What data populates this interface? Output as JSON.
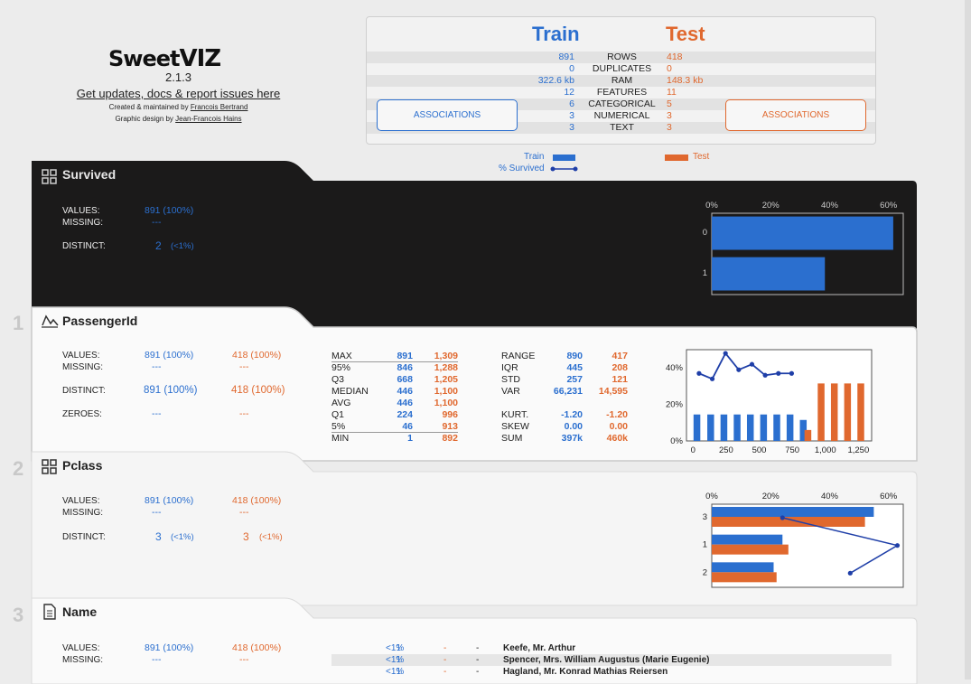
{
  "header": {
    "logo": "Sweet",
    "logo_suffix": "VIZ",
    "version": "2.1.3",
    "updates_link": "Get updates, docs & report issues here",
    "credit1_prefix": "Created & maintained by ",
    "credit1_name": "Francois Bertrand",
    "credit2_prefix": "Graphic design by ",
    "credit2_name": "Jean-Francois Hains"
  },
  "summary": {
    "train_title": "Train",
    "test_title": "Test",
    "assoc_label": "ASSOCIATIONS",
    "rows": [
      {
        "train": "891",
        "label": "ROWS",
        "test": "418"
      },
      {
        "train": "0",
        "label": "DUPLICATES",
        "test": "0"
      },
      {
        "train": "322.6 kb",
        "label": "RAM",
        "test": "148.3 kb"
      },
      {
        "train": "12",
        "label": "FEATURES",
        "test": "11"
      },
      {
        "train": "6",
        "label": "CATEGORICAL",
        "test": "5"
      },
      {
        "train": "3",
        "label": "NUMERICAL",
        "test": "3"
      },
      {
        "train": "3",
        "label": "TEXT",
        "test": "3"
      }
    ],
    "legend_train": "Train",
    "legend_survived": "% Survived",
    "legend_test": "Test"
  },
  "colors": {
    "train": "#2b6fcf",
    "test": "#e0682e",
    "line": "#1f3fa8",
    "dark": "#1b1a1a"
  },
  "survived": {
    "title": "Survived",
    "values_label": "VALUES:",
    "values_train": "891 (100%)",
    "missing_label": "MISSING:",
    "missing_train": "---",
    "distinct_label": "DISTINCT:",
    "distinct_train": "2",
    "distinct_train_pct": "(<1%)",
    "chart": {
      "type": "bar",
      "orientation": "horizontal",
      "categories": [
        "0",
        "1"
      ],
      "values": [
        61.6,
        38.4
      ],
      "xlim": [
        0,
        65
      ],
      "ticks": [
        "0%",
        "20%",
        "40%",
        "60%"
      ]
    }
  },
  "passengerid": {
    "number": "1",
    "title": "PassengerId",
    "values_label": "VALUES:",
    "values_train": "891 (100%)",
    "values_test": "418 (100%)",
    "missing_label": "MISSING:",
    "missing_train": "---",
    "missing_test": "---",
    "distinct_label": "DISTINCT:",
    "distinct_train": "891 (100%)",
    "distinct_test": "418 (100%)",
    "zeroes_label": "ZEROES:",
    "zeroes_train": "---",
    "zeroes_test": "---",
    "quantiles": [
      {
        "label": "MAX",
        "train": "891",
        "test": "1,309"
      },
      {
        "label": "95%",
        "train": "846",
        "test": "1,288"
      },
      {
        "label": "Q3",
        "train": "668",
        "test": "1,205"
      },
      {
        "label": "MEDIAN",
        "train": "446",
        "test": "1,100"
      },
      {
        "label": "AVG",
        "train": "446",
        "test": "1,100"
      },
      {
        "label": "Q1",
        "train": "224",
        "test": "996"
      },
      {
        "label": "5%",
        "train": "46",
        "test": "913"
      },
      {
        "label": "MIN",
        "train": "1",
        "test": "892"
      }
    ],
    "stats": [
      {
        "label": "RANGE",
        "train": "890",
        "test": "417"
      },
      {
        "label": "IQR",
        "train": "445",
        "test": "208"
      },
      {
        "label": "STD",
        "train": "257",
        "test": "121"
      },
      {
        "label": "VAR",
        "train": "66,231",
        "test": "14,595"
      },
      {
        "label": "KURT.",
        "train": "-1.20",
        "test": "-1.20"
      },
      {
        "label": "SKEW",
        "train": "0.00",
        "test": "0.00"
      },
      {
        "label": "SUM",
        "train": "397k",
        "test": "460k"
      }
    ],
    "chart": {
      "type": "bar",
      "x_ticks": [
        "0",
        "250",
        "500",
        "750",
        "1,000",
        "1,250"
      ],
      "y_ticks": [
        "0%",
        "20%",
        "40%"
      ],
      "ylim": [
        0,
        50
      ],
      "xlim": [
        -50,
        1350
      ],
      "train_bins_x": [
        29,
        133,
        233,
        333,
        433,
        533,
        633,
        733,
        833
      ],
      "train_values": [
        14.5,
        14.5,
        14.5,
        14.5,
        14.5,
        14.5,
        14.5,
        14.5,
        11.5
      ],
      "test_bins_x": [
        868,
        968,
        1068,
        1168,
        1268
      ],
      "test_values": [
        6,
        31.5,
        31.5,
        31.5,
        31.5
      ],
      "survived_x": [
        45,
        145,
        245,
        345,
        445,
        545,
        645,
        745
      ],
      "survived_values": [
        37,
        34,
        48,
        39,
        42,
        36,
        37,
        37
      ]
    }
  },
  "pclass": {
    "number": "2",
    "title": "Pclass",
    "values_label": "VALUES:",
    "values_train": "891 (100%)",
    "values_test": "418 (100%)",
    "missing_label": "MISSING:",
    "missing_train": "---",
    "missing_test": "---",
    "distinct_label": "DISTINCT:",
    "distinct_train": "3",
    "distinct_train_pct": "(<1%)",
    "distinct_test": "3",
    "distinct_test_pct": "(<1%)",
    "chart": {
      "type": "bar",
      "orientation": "horizontal",
      "categories": [
        "3",
        "1",
        "2"
      ],
      "train": [
        55,
        24,
        21
      ],
      "test": [
        52,
        26,
        22
      ],
      "survived": [
        24,
        63,
        47
      ],
      "xlim": [
        0,
        65
      ],
      "ticks": [
        "0%",
        "20%",
        "40%",
        "60%"
      ]
    }
  },
  "name": {
    "number": "3",
    "title": "Name",
    "values_label": "VALUES:",
    "values_train": "891 (100%)",
    "values_test": "418 (100%)",
    "missing_label": "MISSING:",
    "missing_train": "---",
    "missing_test": "---",
    "rows": [
      {
        "count": "1",
        "pct": "<1%",
        "tcount": "-",
        "tpct": "-",
        "name": "Keefe, Mr. Arthur"
      },
      {
        "count": "1",
        "pct": "<1%",
        "tcount": "-",
        "tpct": "-",
        "name": "Spencer, Mrs. William Augustus (Marie Eugenie)"
      },
      {
        "count": "1",
        "pct": "<1%",
        "tcount": "-",
        "tpct": "-",
        "name": "Hagland, Mr. Konrad Mathias Reiersen"
      }
    ]
  }
}
